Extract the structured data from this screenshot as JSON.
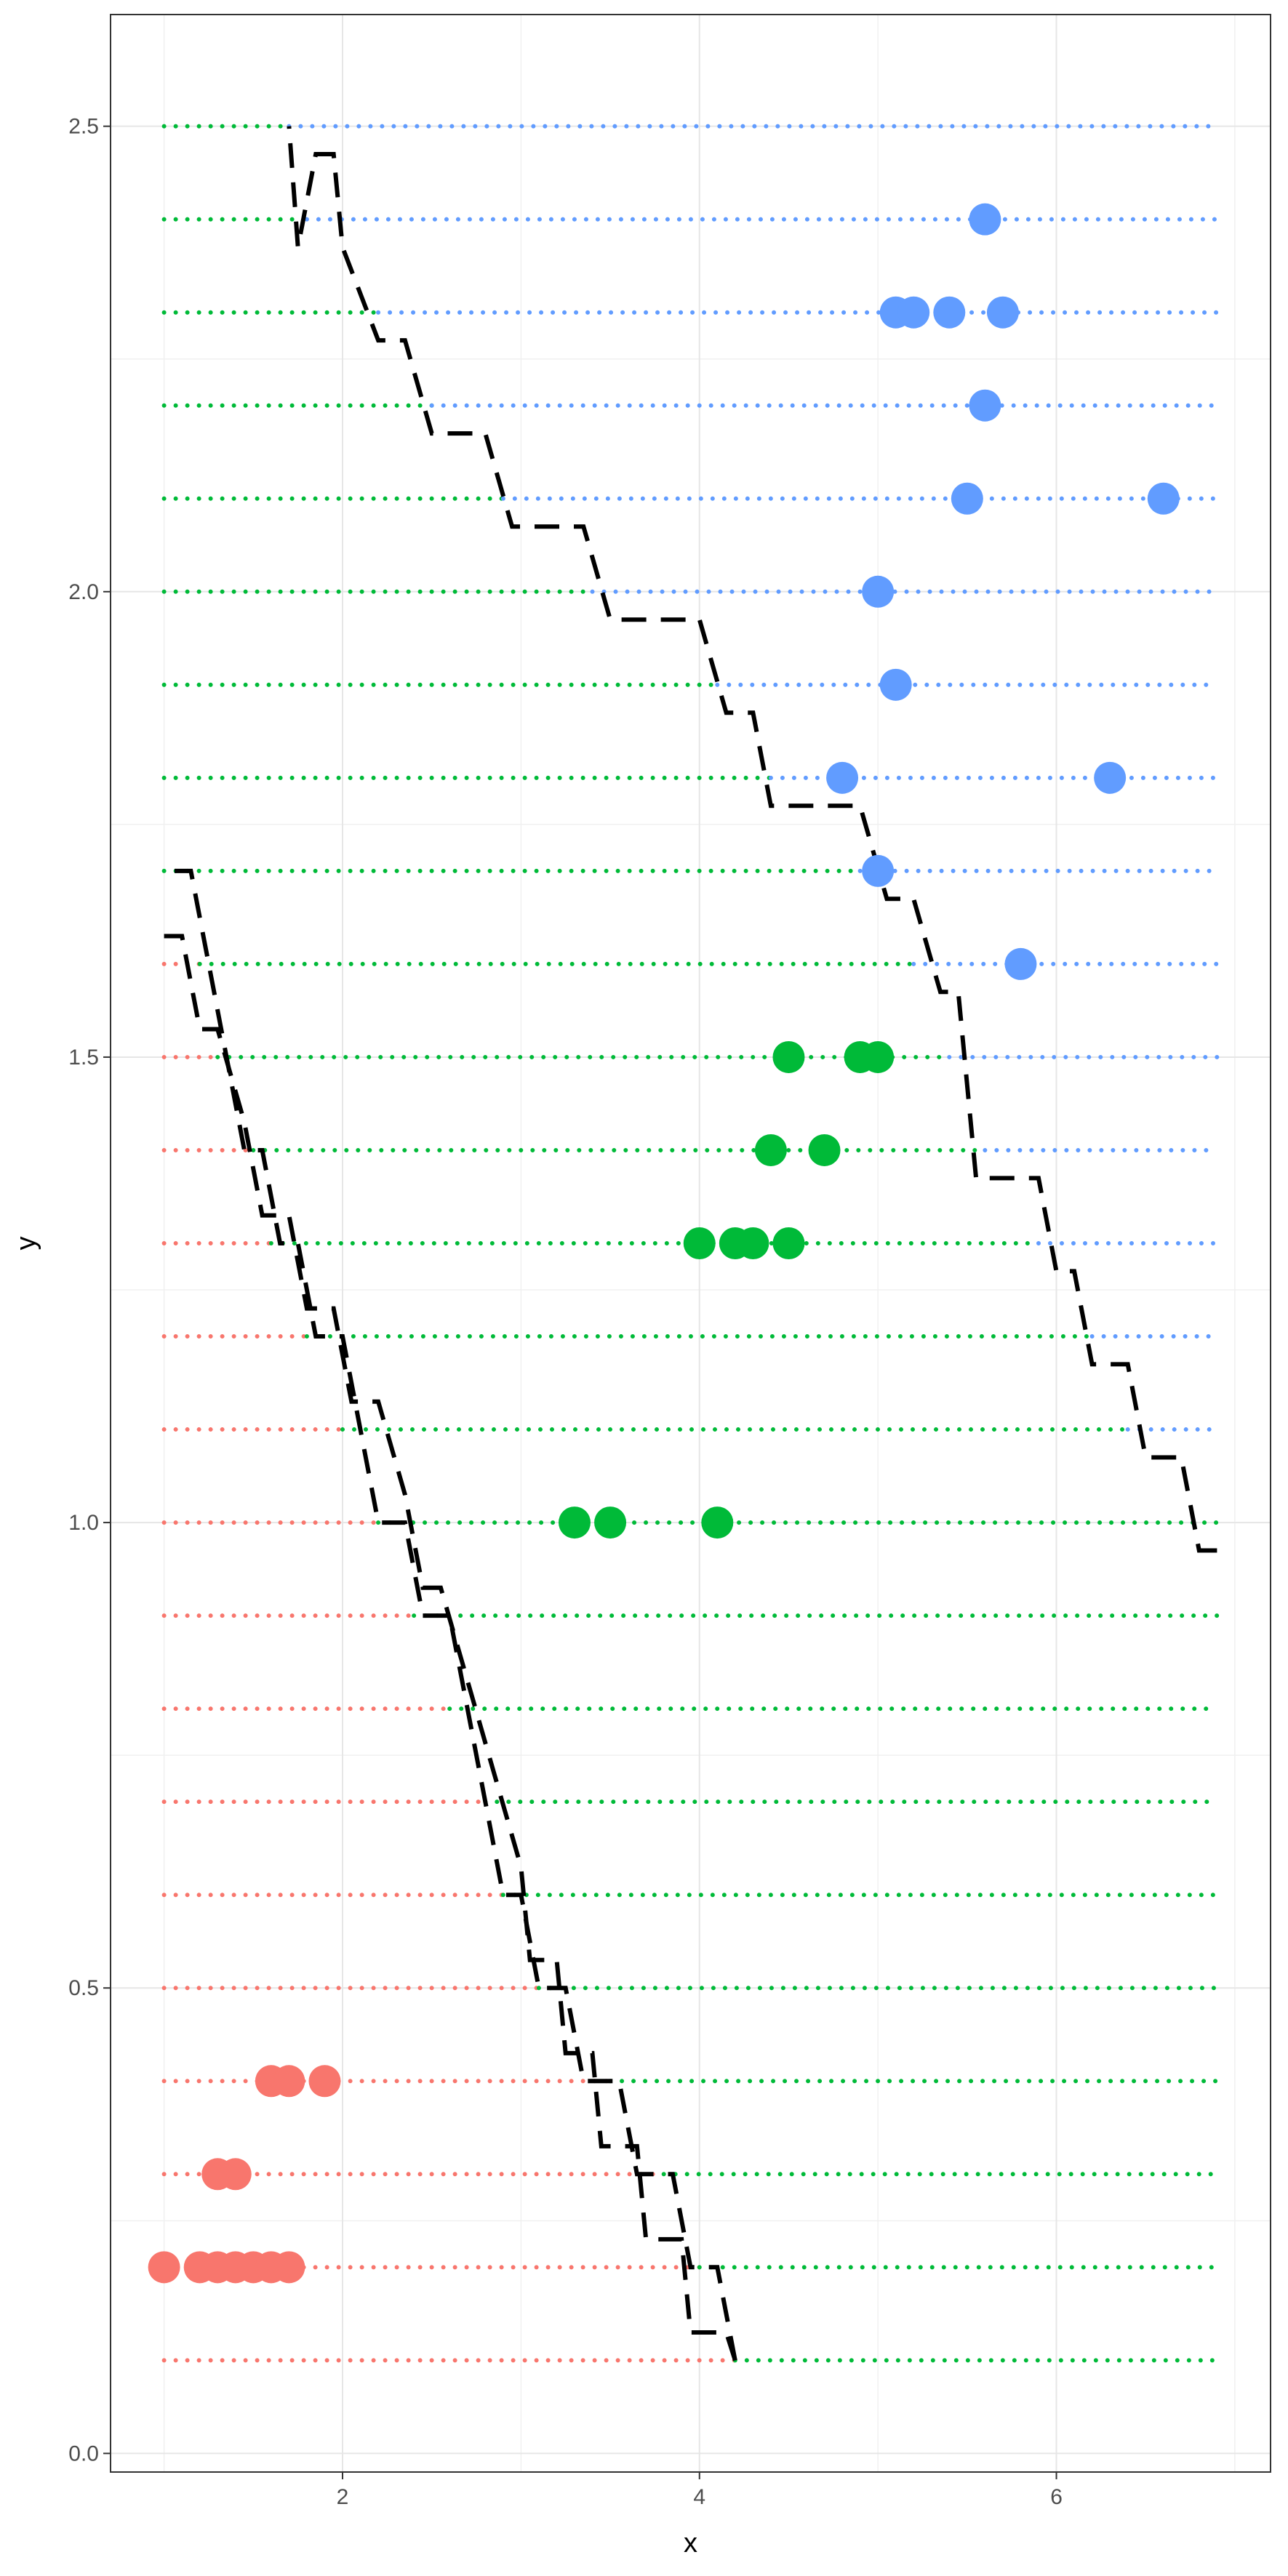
{
  "chart_data": {
    "type": "scatter",
    "title": "",
    "xlabel": "x",
    "ylabel": "y",
    "xlim": [
      0.7,
      7.2
    ],
    "ylim": [
      -0.02,
      2.62
    ],
    "x_major_ticks": [
      2,
      4,
      6
    ],
    "x_tick_labels": [
      "2",
      "4",
      "6"
    ],
    "x_minor_ticks": [
      1,
      3,
      5,
      7
    ],
    "y_major_ticks": [
      0.0,
      0.5,
      1.0,
      1.5,
      2.0,
      2.5
    ],
    "y_tick_labels": [
      "0.0",
      "0.5",
      "1.0",
      "1.5",
      "2.0",
      "2.5"
    ],
    "y_minor_ticks": [
      0.25,
      0.75,
      1.25,
      1.75,
      2.25
    ],
    "grid": true,
    "colors": {
      "red": "#F8766D",
      "green": "#00BA38",
      "blue": "#619CFF"
    },
    "dotted_rows": {
      "x_start": 1.0,
      "x_end": 6.9,
      "rows": [
        {
          "y": 0.1,
          "red_end": 4.2,
          "green_end": 6.9
        },
        {
          "y": 0.2,
          "red_end": 4.0,
          "green_end": 6.9
        },
        {
          "y": 0.3,
          "red_end": 3.8,
          "green_end": 6.9
        },
        {
          "y": 0.4,
          "red_end": 3.5,
          "green_end": 6.9
        },
        {
          "y": 0.5,
          "red_end": 3.1,
          "green_end": 6.9
        },
        {
          "y": 0.6,
          "red_end": 2.9,
          "green_end": 6.9
        },
        {
          "y": 0.7,
          "red_end": 2.8,
          "green_end": 6.9
        },
        {
          "y": 0.8,
          "red_end": 2.6,
          "green_end": 6.9
        },
        {
          "y": 0.9,
          "red_end": 2.4,
          "green_end": 6.9
        },
        {
          "y": 1.0,
          "red_end": 2.2,
          "green_end": 6.9
        },
        {
          "y": 1.1,
          "red_end": 2.0,
          "green_end": 6.4
        },
        {
          "y": 1.2,
          "red_end": 1.8,
          "green_end": 6.2
        },
        {
          "y": 1.3,
          "red_end": 1.6,
          "green_end": 5.9
        },
        {
          "y": 1.4,
          "red_end": 1.5,
          "green_end": 5.6
        },
        {
          "y": 1.5,
          "red_end": 1.3,
          "green_end": 5.4
        },
        {
          "y": 1.6,
          "red_end": 1.2,
          "green_end": 5.2
        },
        {
          "y": 1.7,
          "red_end": 1.0,
          "green_end": 4.9
        },
        {
          "y": 1.8,
          "red_end": 1.0,
          "green_end": 4.4
        },
        {
          "y": 1.9,
          "red_end": 1.0,
          "green_end": 4.1
        },
        {
          "y": 2.0,
          "red_end": 1.0,
          "green_end": 3.4
        },
        {
          "y": 2.1,
          "red_end": 1.0,
          "green_end": 2.9
        },
        {
          "y": 2.2,
          "red_end": 1.0,
          "green_end": 2.5
        },
        {
          "y": 2.3,
          "red_end": 1.0,
          "green_end": 2.2
        },
        {
          "y": 2.4,
          "red_end": 1.0,
          "green_end": 1.8
        },
        {
          "y": 2.5,
          "red_end": 1.0,
          "green_end": 1.7
        }
      ]
    },
    "series": [
      {
        "color": "red",
        "points": [
          [
            1.0,
            0.2
          ],
          [
            1.2,
            0.2
          ],
          [
            1.3,
            0.2
          ],
          [
            1.4,
            0.2
          ],
          [
            1.5,
            0.2
          ],
          [
            1.6,
            0.2
          ],
          [
            1.7,
            0.2
          ],
          [
            1.3,
            0.3
          ],
          [
            1.4,
            0.3
          ],
          [
            1.6,
            0.4
          ],
          [
            1.7,
            0.4
          ],
          [
            1.9,
            0.4
          ]
        ]
      },
      {
        "color": "green",
        "points": [
          [
            3.3,
            1.0
          ],
          [
            3.5,
            1.0
          ],
          [
            4.1,
            1.0
          ],
          [
            4.0,
            1.3
          ],
          [
            4.2,
            1.3
          ],
          [
            4.3,
            1.3
          ],
          [
            4.5,
            1.3
          ],
          [
            4.4,
            1.4
          ],
          [
            4.7,
            1.4
          ],
          [
            4.5,
            1.5
          ],
          [
            4.9,
            1.5
          ],
          [
            5.0,
            1.5
          ]
        ]
      },
      {
        "color": "blue",
        "points": [
          [
            5.8,
            1.6
          ],
          [
            5.0,
            1.7
          ],
          [
            4.8,
            1.8
          ],
          [
            6.3,
            1.8
          ],
          [
            5.1,
            1.9
          ],
          [
            5.0,
            2.0
          ],
          [
            5.5,
            2.1
          ],
          [
            6.6,
            2.1
          ],
          [
            5.6,
            2.2
          ],
          [
            5.1,
            2.3
          ],
          [
            5.2,
            2.3
          ],
          [
            5.4,
            2.3
          ],
          [
            5.7,
            2.3
          ],
          [
            5.6,
            2.4
          ]
        ]
      }
    ],
    "boundary_lines": [
      {
        "style": "dashed",
        "color": "#000000",
        "points": [
          [
            4.2,
            0.1
          ],
          [
            4.15,
            0.13
          ],
          [
            3.95,
            0.13
          ],
          [
            3.9,
            0.23
          ],
          [
            3.7,
            0.23
          ],
          [
            3.65,
            0.33
          ],
          [
            3.45,
            0.33
          ],
          [
            3.4,
            0.43
          ],
          [
            3.25,
            0.43
          ],
          [
            3.2,
            0.53
          ],
          [
            3.05,
            0.53
          ],
          [
            3.0,
            0.63
          ],
          [
            2.85,
            0.73
          ],
          [
            2.7,
            0.83
          ],
          [
            2.55,
            0.93
          ],
          [
            2.45,
            0.93
          ],
          [
            2.35,
            1.03
          ],
          [
            2.2,
            1.13
          ],
          [
            2.05,
            1.13
          ],
          [
            1.95,
            1.23
          ],
          [
            1.8,
            1.23
          ],
          [
            1.7,
            1.33
          ],
          [
            1.55,
            1.33
          ],
          [
            1.45,
            1.43
          ],
          [
            1.3,
            1.53
          ],
          [
            1.2,
            1.53
          ],
          [
            1.1,
            1.63
          ],
          [
            1.0,
            1.63
          ]
        ]
      },
      {
        "style": "dashed",
        "color": "#000000",
        "points": [
          [
            4.2,
            0.1
          ],
          [
            4.1,
            0.2
          ],
          [
            3.95,
            0.2
          ],
          [
            3.85,
            0.3
          ],
          [
            3.65,
            0.3
          ],
          [
            3.55,
            0.4
          ],
          [
            3.35,
            0.4
          ],
          [
            3.25,
            0.5
          ],
          [
            3.1,
            0.5
          ],
          [
            3.0,
            0.6
          ],
          [
            2.9,
            0.6
          ],
          [
            2.8,
            0.7
          ],
          [
            2.7,
            0.8
          ],
          [
            2.6,
            0.9
          ],
          [
            2.45,
            0.9
          ],
          [
            2.35,
            1.0
          ],
          [
            2.2,
            1.0
          ],
          [
            2.1,
            1.1
          ],
          [
            2.0,
            1.2
          ],
          [
            1.85,
            1.2
          ],
          [
            1.75,
            1.3
          ],
          [
            1.65,
            1.3
          ],
          [
            1.55,
            1.4
          ],
          [
            1.45,
            1.4
          ],
          [
            1.35,
            1.5
          ],
          [
            1.25,
            1.6
          ],
          [
            1.15,
            1.7
          ],
          [
            1.0,
            1.7
          ]
        ]
      },
      {
        "style": "dashed",
        "color": "#000000",
        "points": [
          [
            6.9,
            0.97
          ],
          [
            6.8,
            0.97
          ],
          [
            6.7,
            1.07
          ],
          [
            6.5,
            1.07
          ],
          [
            6.4,
            1.17
          ],
          [
            6.2,
            1.17
          ],
          [
            6.1,
            1.27
          ],
          [
            6.0,
            1.27
          ],
          [
            5.9,
            1.37
          ],
          [
            5.55,
            1.37
          ],
          [
            5.45,
            1.57
          ],
          [
            5.35,
            1.57
          ],
          [
            5.2,
            1.67
          ],
          [
            5.05,
            1.67
          ],
          [
            4.9,
            1.77
          ],
          [
            4.4,
            1.77
          ],
          [
            4.3,
            1.87
          ],
          [
            4.15,
            1.87
          ],
          [
            4.0,
            1.97
          ],
          [
            3.5,
            1.97
          ],
          [
            3.35,
            2.07
          ],
          [
            2.95,
            2.07
          ],
          [
            2.8,
            2.17
          ],
          [
            2.5,
            2.17
          ],
          [
            2.35,
            2.27
          ],
          [
            2.2,
            2.27
          ],
          [
            2.0,
            2.37
          ],
          [
            1.95,
            2.47
          ],
          [
            1.85,
            2.47
          ],
          [
            1.75,
            2.37
          ],
          [
            1.7,
            2.5
          ]
        ]
      }
    ]
  }
}
